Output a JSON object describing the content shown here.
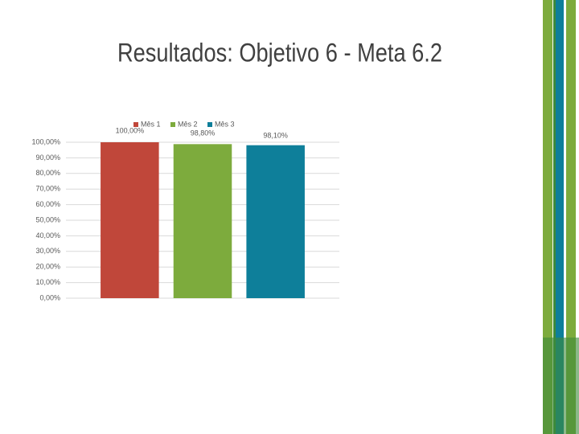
{
  "chart_data": {
    "type": "bar",
    "title": "Resultados: Objetivo 6 - Meta 6.2",
    "categories": [
      null
    ],
    "series": [
      {
        "name": "Mês 1",
        "color": "#c0473a",
        "values": [
          100
        ],
        "value_labels": [
          "100,00%"
        ]
      },
      {
        "name": "Mês 2",
        "color": "#7dab3d",
        "values": [
          98.8
        ],
        "value_labels": [
          "98,80%"
        ]
      },
      {
        "name": "Mês 3",
        "color": "#0e7f9a",
        "values": [
          98.1
        ],
        "value_labels": [
          "98,10%"
        ]
      }
    ],
    "ylim": [
      0,
      100
    ],
    "yticks": [
      {
        "value": 0,
        "label": "0,00%"
      },
      {
        "value": 10,
        "label": "10,00%"
      },
      {
        "value": 20,
        "label": "20,00%"
      },
      {
        "value": 30,
        "label": "30,00%"
      },
      {
        "value": 40,
        "label": "40,00%"
      },
      {
        "value": 50,
        "label": "50,00%"
      },
      {
        "value": 60,
        "label": "60,00%"
      },
      {
        "value": 70,
        "label": "70,00%"
      },
      {
        "value": 80,
        "label": "80,00%"
      },
      {
        "value": 90,
        "label": "90,00%"
      },
      {
        "value": 100,
        "label": "100,00%"
      }
    ],
    "grid": true,
    "legend": "top"
  }
}
